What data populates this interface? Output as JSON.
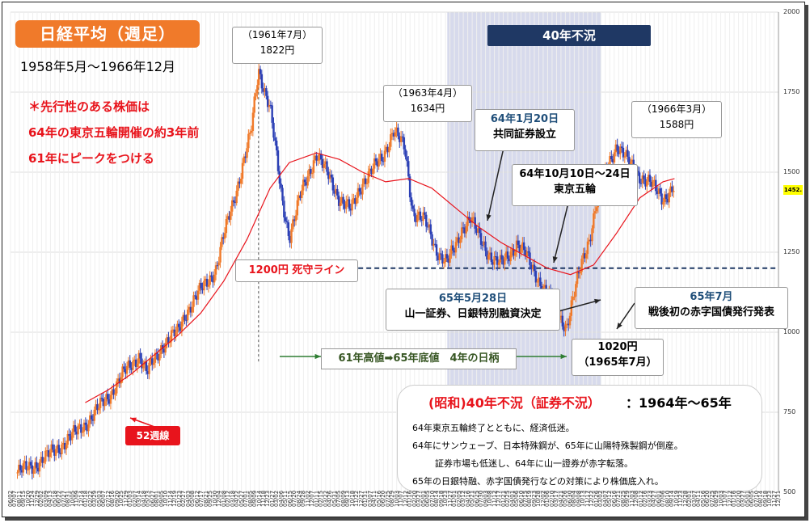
{
  "header": {
    "title": "日経平均（週足）",
    "period": "1958年5月～1966年12月",
    "note_lines": [
      "＊先行性のある株価は",
      "64年の東京五輪開催の約3年前",
      "61年にピークをつける"
    ]
  },
  "era_label": "40年不況",
  "callouts": {
    "peak1961_date": "（1961年7月）",
    "peak1961_value": "1822円",
    "peak1963_date": "（1963年4月）",
    "peak1963_value": "1634円",
    "peak1966_date": "（1966年3月）",
    "peak1966_value": "1588円",
    "ev1_date": "64年1月20日",
    "ev1_text": "共同証券設立",
    "ev2_date": "64年10月10日～24日",
    "ev2_text": "東京五輪",
    "ev3_date": "65年5月28日",
    "ev3_text": "山一証券、日銀特別融資決定",
    "ev4_date": "65年7月",
    "ev4_text": "戦後初の赤字国債発行発表",
    "low_value": "1020円",
    "low_date": "（1965年7月）",
    "line1200": "1200円 死守ライン",
    "ma": "52週線",
    "span": "61年高値➡65年底値　4年の日柄",
    "current_price": "1452."
  },
  "info_box": {
    "heading_red": "(昭和)40年不況（証券不況）",
    "heading_black": "：1964年～65年",
    "lines": [
      "64年東京五輪終了とともに、経済低迷。",
      "64年にサンウェーブ、日本特殊鋼が、65年に山陽特殊製鋼が倒産。",
      "証券市場も低迷し、64年に山一證券が赤字転落。",
      "65年の日銀特融、赤字国債発行などの対策により株価底入れ。"
    ]
  },
  "colors": {
    "up": "#f07a2a",
    "down": "#2b3fb5",
    "ma": "#e8141c",
    "band": "#c9cde6"
  },
  "chart_data": {
    "type": "candlestick",
    "ylim": [
      500,
      2000
    ],
    "yticks": [
      500,
      750,
      1000,
      1250,
      1500,
      1750,
      2000
    ],
    "x_tick_labels": [
      "06/02",
      "07/07",
      "08/11",
      "09/15",
      "10/20",
      "11/24",
      "12/29",
      "02/02",
      "03/09",
      "04/13",
      "05/18",
      "06/22",
      "07/27",
      "08/31",
      "10/05",
      "11/09",
      "12/14",
      "01/18",
      "02/22",
      "03/29",
      "05/03",
      "06/07",
      "07/12",
      "08/16",
      "09/20",
      "10/25",
      "11/29",
      "01/03",
      "02/07",
      "03/14",
      "04/18",
      "05/23",
      "06/27",
      "08/01",
      "09/05",
      "10/10",
      "11/14",
      "12/19",
      "01/23",
      "02/27",
      "04/03",
      "05/08",
      "06/12",
      "07/17",
      "08/21",
      "09/25",
      "10/30",
      "12/04",
      "01/08",
      "02/12",
      "03/18",
      "04/22",
      "05/27",
      "07/01",
      "08/05",
      "09/09",
      "10/14",
      "11/18",
      "12/23",
      "01/27",
      "03/02",
      "04/06",
      "05/11",
      "06/15",
      "07/20",
      "08/24",
      "09/28",
      "11/02",
      "12/07",
      "01/11",
      "02/15",
      "03/22",
      "04/26",
      "05/31",
      "07/05",
      "08/09",
      "09/13",
      "10/18",
      "11/22",
      "12/27",
      "01/31",
      "03/07",
      "04/11",
      "05/16",
      "06/20",
      "07/25",
      "08/29",
      "10/03",
      "11/07",
      "12/12",
      "01/16",
      "02/20",
      "03/27",
      "05/01",
      "06/05",
      "07/10",
      "08/14",
      "09/18",
      "10/23",
      "11/27",
      "01/01",
      "02/05",
      "03/12",
      "04/16",
      "05/21",
      "06/25",
      "07/30",
      "09/03",
      "10/08",
      "11/12",
      "12/17",
      "01/21",
      "02/25",
      "04/01",
      "05/06",
      "06/10",
      "07/15",
      "08/19",
      "09/23",
      "10/28",
      "12/02",
      "01/06",
      "02/10",
      "03/17",
      "04/21",
      "05/26",
      "06/30",
      "08/04",
      "09/08",
      "10/13",
      "11/17",
      "12/22",
      "01/26",
      "03/02",
      "04/07",
      "05/12",
      "06/16",
      "07/21",
      "08/25",
      "09/29",
      "11/03",
      "12/08",
      "01/12",
      "02/16",
      "03/23",
      "04/27",
      "06/01",
      "07/06",
      "08/10",
      "09/14",
      "10/19",
      "11/23",
      "12/28",
      "02/01",
      "03/07",
      "04/11",
      "05/16",
      "06/20",
      "07/25",
      "08/29",
      "10/03",
      "11/07",
      "12/12",
      "01/16",
      "02/20",
      "03/27",
      "05/01",
      "06/05",
      "07/10",
      "08/14",
      "09/18",
      "10/23",
      "11/27",
      "12/31"
    ],
    "series": [
      {
        "name": "週足",
        "points": [
          [
            1958.4,
            560
          ],
          [
            1958.6,
            580
          ],
          [
            1958.8,
            610
          ],
          [
            1959.0,
            650
          ],
          [
            1959.2,
            690
          ],
          [
            1959.4,
            740
          ],
          [
            1959.6,
            800
          ],
          [
            1959.8,
            870
          ],
          [
            1960.0,
            930
          ],
          [
            1960.1,
            870
          ],
          [
            1960.3,
            960
          ],
          [
            1960.5,
            1000
          ],
          [
            1960.6,
            1060
          ],
          [
            1960.8,
            1130
          ],
          [
            1961.0,
            1200
          ],
          [
            1961.1,
            1300
          ],
          [
            1961.3,
            1480
          ],
          [
            1961.45,
            1620
          ],
          [
            1961.55,
            1822
          ],
          [
            1961.7,
            1700
          ],
          [
            1961.85,
            1420
          ],
          [
            1961.95,
            1300
          ],
          [
            1962.1,
            1430
          ],
          [
            1962.3,
            1560
          ],
          [
            1962.45,
            1490
          ],
          [
            1962.6,
            1420
          ],
          [
            1962.75,
            1380
          ],
          [
            1962.9,
            1470
          ],
          [
            1963.0,
            1500
          ],
          [
            1963.15,
            1540
          ],
          [
            1963.3,
            1634
          ],
          [
            1963.45,
            1570
          ],
          [
            1963.55,
            1380
          ],
          [
            1963.7,
            1350
          ],
          [
            1963.85,
            1260
          ],
          [
            1964.0,
            1220
          ],
          [
            1964.1,
            1260
          ],
          [
            1964.2,
            1330
          ],
          [
            1964.3,
            1360
          ],
          [
            1964.4,
            1300
          ],
          [
            1964.5,
            1260
          ],
          [
            1964.6,
            1230
          ],
          [
            1964.7,
            1210
          ],
          [
            1964.8,
            1240
          ],
          [
            1964.9,
            1280
          ],
          [
            1965.0,
            1250
          ],
          [
            1965.1,
            1200
          ],
          [
            1965.3,
            1120
          ],
          [
            1965.45,
            1050
          ],
          [
            1965.55,
            1020
          ],
          [
            1965.65,
            1120
          ],
          [
            1965.75,
            1220
          ],
          [
            1965.85,
            1300
          ],
          [
            1965.95,
            1420
          ],
          [
            1966.1,
            1530
          ],
          [
            1966.2,
            1588
          ],
          [
            1966.35,
            1530
          ],
          [
            1966.5,
            1490
          ],
          [
            1966.65,
            1460
          ],
          [
            1966.8,
            1420
          ],
          [
            1966.95,
            1452
          ]
        ]
      },
      {
        "name": "52週線",
        "points": [
          [
            1959.3,
            780
          ],
          [
            1959.6,
            820
          ],
          [
            1959.9,
            870
          ],
          [
            1960.2,
            930
          ],
          [
            1960.5,
            990
          ],
          [
            1960.8,
            1060
          ],
          [
            1961.1,
            1160
          ],
          [
            1961.4,
            1290
          ],
          [
            1961.7,
            1450
          ],
          [
            1961.95,
            1530
          ],
          [
            1962.3,
            1560
          ],
          [
            1962.6,
            1540
          ],
          [
            1962.9,
            1500
          ],
          [
            1963.2,
            1470
          ],
          [
            1963.5,
            1480
          ],
          [
            1963.8,
            1450
          ],
          [
            1964.1,
            1390
          ],
          [
            1964.4,
            1330
          ],
          [
            1964.7,
            1280
          ],
          [
            1965.0,
            1240
          ],
          [
            1965.3,
            1200
          ],
          [
            1965.6,
            1180
          ],
          [
            1965.9,
            1210
          ],
          [
            1966.2,
            1310
          ],
          [
            1966.5,
            1420
          ],
          [
            1966.8,
            1470
          ],
          [
            1966.95,
            1480
          ]
        ]
      }
    ],
    "reference_line": 1200
  }
}
